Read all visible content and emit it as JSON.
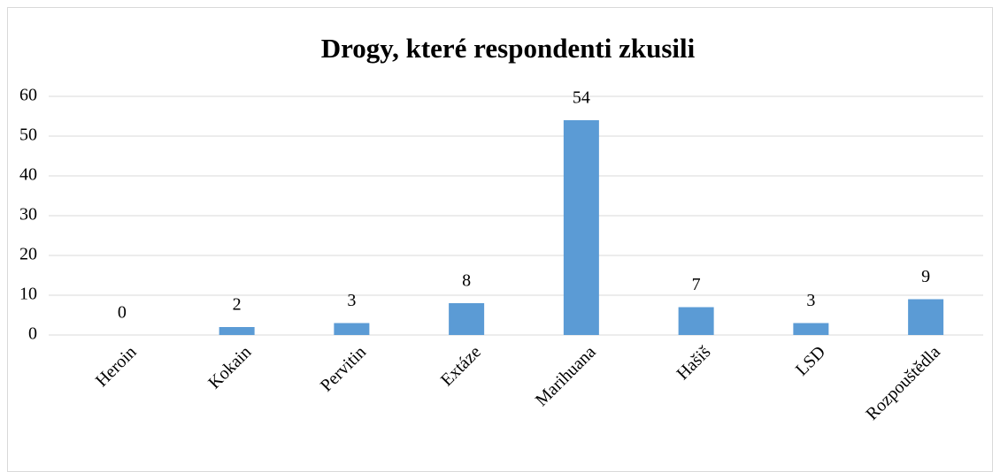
{
  "chart_data": {
    "type": "bar",
    "title": "Drogy, které respondenti zkusili",
    "categories": [
      "Heroin",
      "Kokain",
      "Pervitin",
      "Extáze",
      "Marihuana",
      "Hašiš",
      "LSD",
      "Rozpouštědla"
    ],
    "values": [
      0,
      2,
      3,
      8,
      54,
      7,
      3,
      9
    ],
    "color": "#5b9bd5",
    "ylim": [
      0,
      60
    ],
    "yticks": [
      0,
      10,
      20,
      30,
      40,
      50,
      60
    ],
    "grid": true
  }
}
